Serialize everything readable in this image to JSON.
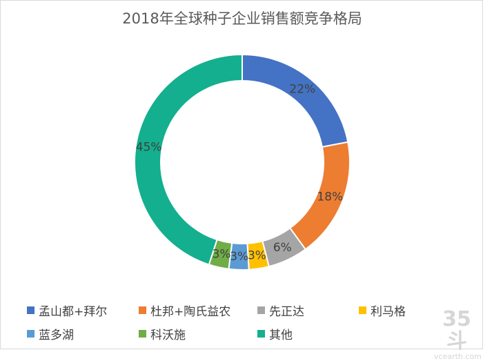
{
  "chart_data": {
    "type": "pie",
    "title": "2018年全球种子企业销售额竞争格局",
    "categories": [
      "孟山都+拜尔",
      "杜邦+陶氏益农",
      "先正达",
      "利马格",
      "蓝多湖",
      "科沃施",
      "其他"
    ],
    "values": [
      22,
      18,
      6,
      3,
      3,
      3,
      45
    ],
    "labels": [
      "22%",
      "18%",
      "6%",
      "3%",
      "3%",
      "3%",
      "45%"
    ],
    "colors": [
      "#4472C4",
      "#ED7D31",
      "#A5A5A5",
      "#FFC000",
      "#5B9BD5",
      "#70AD47",
      "#13AF8E"
    ],
    "style": "donut",
    "legend_position": "bottom"
  },
  "watermark": {
    "main": "35斗",
    "sub": "vcearth.com"
  }
}
